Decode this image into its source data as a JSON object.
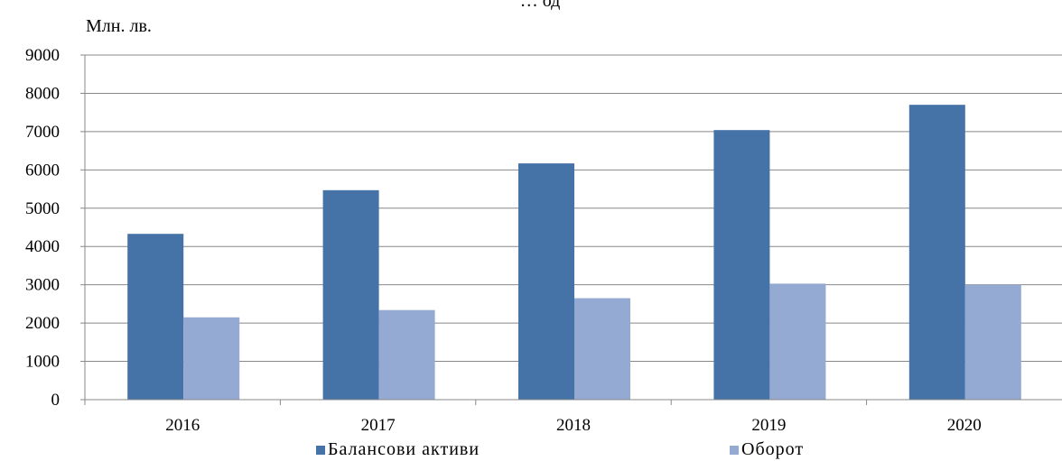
{
  "chart_data": {
    "type": "bar",
    "title_fragment": "… од",
    "unit_label": "Млн. лв.",
    "categories": [
      "2016",
      "2017",
      "2018",
      "2019",
      "2020"
    ],
    "series": [
      {
        "name": "Балансови активи",
        "color": "#4572A7",
        "values": [
          4330,
          5470,
          6170,
          7040,
          7700
        ]
      },
      {
        "name": "Оборот",
        "color": "#95AAD3",
        "values": [
          2150,
          2340,
          2650,
          3030,
          3000
        ]
      }
    ],
    "ylim": [
      0,
      9000
    ],
    "yticks": [
      0,
      1000,
      2000,
      3000,
      4000,
      5000,
      6000,
      7000,
      8000,
      9000
    ],
    "grid": true,
    "legend_position": "bottom"
  }
}
